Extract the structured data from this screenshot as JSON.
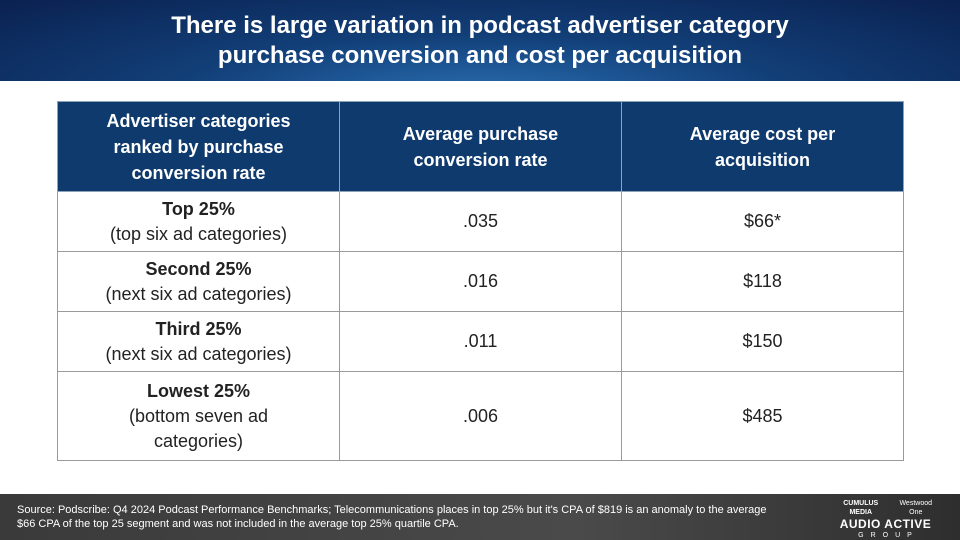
{
  "slide": {
    "title": "There is large variation in podcast advertiser category\npurchase conversion and cost per acquisition"
  },
  "table": {
    "headers": [
      "Advertiser categories ranked by purchase conversion rate",
      "Average purchase conversion rate",
      "Average cost per acquisition"
    ],
    "rows": [
      {
        "category": "Top 25%",
        "detail": "(top six ad categories)",
        "conversion": ".035",
        "cpa": "$66*"
      },
      {
        "category": "Second 25%",
        "detail": "(next six ad categories)",
        "conversion": ".016",
        "cpa": "$118"
      },
      {
        "category": "Third 25%",
        "detail": "(next six ad categories)",
        "conversion": ".011",
        "cpa": "$150"
      },
      {
        "category": "Lowest 25%",
        "detail": "(bottom seven ad categories)",
        "conversion": ".006",
        "cpa": "$485"
      }
    ]
  },
  "footer": {
    "source": "Source: Podscribe: Q4 2024 Podcast Performance Benchmarks; Telecommunications places in top 25% but it's CPA of $819 is an anomaly to the average $66 CPA of the top 25 segment and was not included in the average top 25% quartile CPA."
  },
  "brand": {
    "partner_left": "CUMULUS MEDIA",
    "partner_right": "Westwood One",
    "name": "AUDIO ACTIVE",
    "group": "GROUP"
  }
}
